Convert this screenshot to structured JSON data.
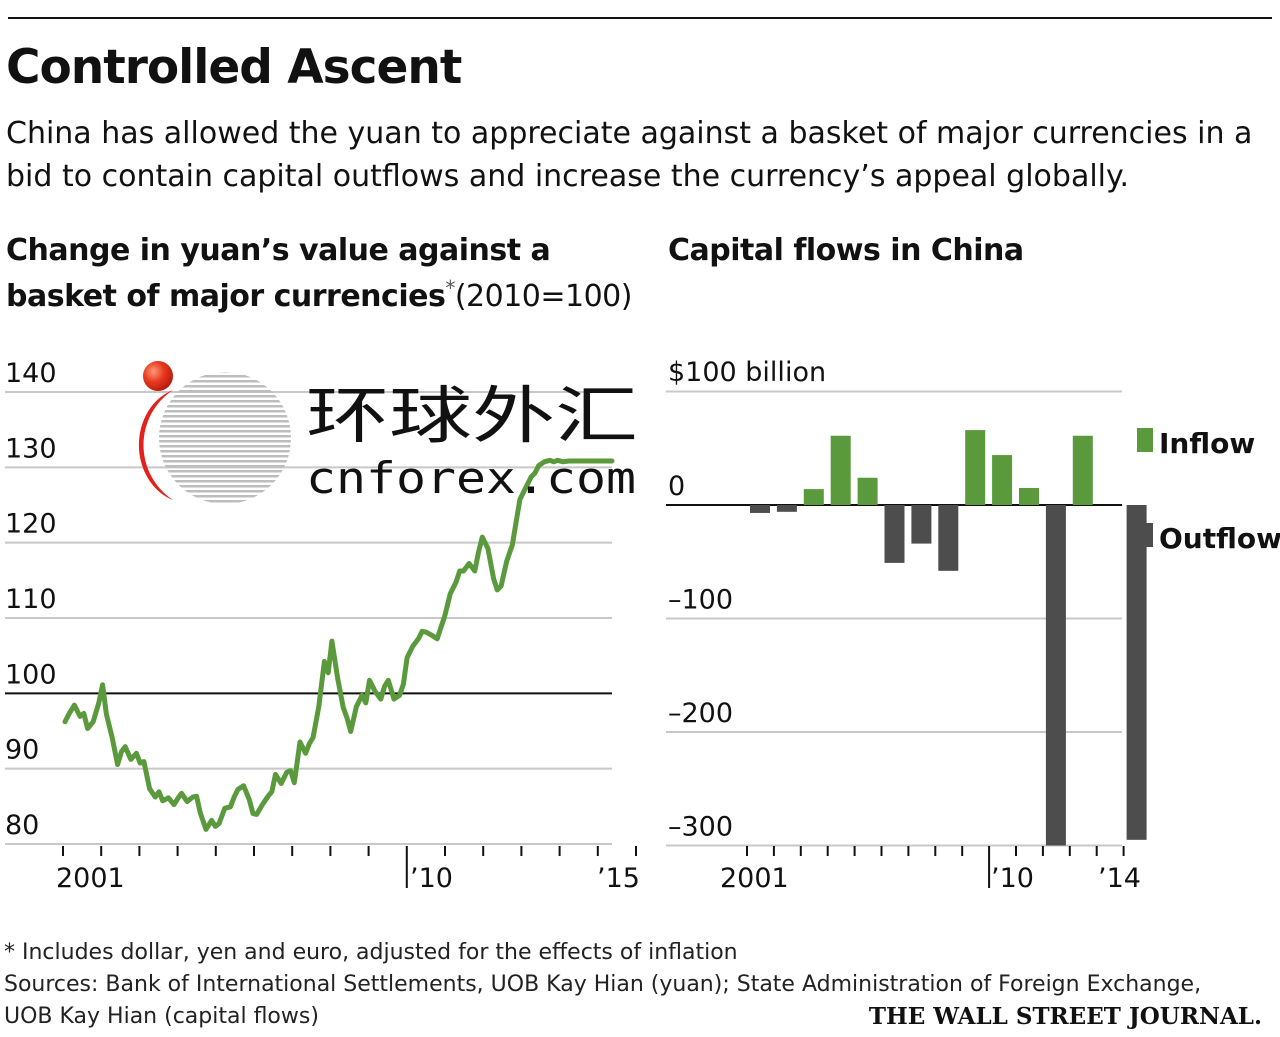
{
  "header": {
    "title": "Controlled Ascent",
    "subtitle": "China has allowed the yuan to appreciate against a basket of major currencies in a bid to contain capital outflows and increase the currency’s appeal globally."
  },
  "watermark": {
    "chinese_text": "环球外汇",
    "domain_text": "cnforex.com"
  },
  "chart_data": [
    {
      "type": "line",
      "title_main": "Change in yuan’s value against a basket of major currencies",
      "title_star": "*",
      "title_unit": "(2010=100)",
      "y_ticks": [
        "140",
        "130",
        "120",
        "110",
        "100",
        "90",
        "80"
      ],
      "x_tick_labels": [
        "2001",
        "’10",
        "’15"
      ],
      "ylim": [
        78,
        140
      ],
      "xlim": [
        2000.3,
        2015.3
      ],
      "baseline": 100,
      "line_color": "#5a9a3c",
      "series": [
        {
          "x": [
            2000.5,
            2000.6,
            2000.75,
            2000.9,
            2001.0,
            2001.1,
            2001.25,
            2001.4,
            2001.5,
            2001.6,
            2001.75,
            2001.9,
            2002.0,
            2002.1,
            2002.25,
            2002.4,
            2002.5,
            2002.6,
            2002.75,
            2002.9,
            2003.0,
            2003.1,
            2003.25,
            2003.4,
            2003.5,
            2003.6,
            2003.75,
            2003.9,
            2004.0,
            2004.1,
            2004.25,
            2004.4,
            2004.5,
            2004.6,
            2004.75,
            2004.9,
            2005.0,
            2005.1,
            2005.25,
            2005.4,
            2005.5,
            2005.6,
            2005.75,
            2005.9,
            2006.0,
            2006.1,
            2006.25,
            2006.4,
            2006.5,
            2006.6,
            2006.75,
            2006.9,
            2007.0,
            2007.1,
            2007.25,
            2007.4,
            2007.5,
            2007.6,
            2007.75,
            2007.9,
            2008.0,
            2008.1,
            2008.25,
            2008.4,
            2008.5,
            2008.6,
            2008.75,
            2008.9,
            2009.0,
            2009.1,
            2009.25,
            2009.4,
            2009.5,
            2009.6,
            2009.75,
            2009.9,
            2010.0,
            2010.1,
            2010.25,
            2010.4,
            2010.5,
            2010.6,
            2010.75,
            2010.9,
            2011.0,
            2011.1,
            2011.25,
            2011.4,
            2011.5,
            2011.6,
            2011.75,
            2011.9,
            2012.0,
            2012.1,
            2012.25,
            2012.4,
            2012.5,
            2012.6,
            2012.75,
            2012.9,
            2013.0,
            2013.1,
            2013.25,
            2013.4,
            2013.5,
            2013.6,
            2013.75,
            2013.9,
            2014.0,
            2014.1,
            2014.25,
            2014.4,
            2014.5,
            2014.6,
            2014.75,
            2014.9,
            2015.0,
            2015.05
          ],
          "y": [
            96.5,
            97.5,
            98.7,
            97.2,
            97.6,
            95.6,
            96.5,
            99.0,
            101.4,
            97.5,
            94.5,
            90.8,
            92.5,
            93.2,
            91.5,
            92.3,
            91.0,
            91.2,
            87.6,
            86.5,
            87.2,
            86.0,
            86.4,
            85.5,
            86.3,
            87.0,
            85.9,
            86.5,
            86.6,
            84.4,
            82.2,
            83.4,
            82.6,
            83.0,
            85.0,
            85.2,
            86.5,
            87.5,
            88.0,
            86.2,
            84.3,
            84.2,
            85.5,
            86.6,
            87.2,
            89.5,
            88.3,
            89.8,
            90.0,
            88.4,
            93.8,
            92.3,
            93.6,
            94.4,
            98.5,
            104.5,
            103.0,
            107.2,
            102.3,
            98.4,
            97.0,
            95.2,
            98.5,
            100.0,
            99.0,
            102.0,
            100.5,
            99.5,
            101.2,
            102.0,
            99.5,
            100.0,
            101.5,
            105.0,
            106.5,
            107.5,
            108.5,
            108.4,
            108.0,
            107.5,
            109.0,
            110.5,
            113.5,
            115.0,
            116.5,
            116.5,
            117.5,
            116.5,
            119.0,
            121.0,
            119.5,
            115.5,
            114.0,
            114.5,
            117.8,
            120.0,
            123.0,
            126.0,
            127.5,
            129.0,
            129.5,
            130.5,
            131.0,
            131.2,
            131.0,
            131.2,
            131.0,
            131.1,
            131.1,
            131.1,
            131.1,
            131.1,
            131.1,
            131.1,
            131.1,
            131.1,
            131.1,
            131.1
          ]
        }
      ]
    },
    {
      "type": "bar",
      "title": "Capital flows in China",
      "y_unit_label": "$100 billion",
      "y_ticks": [
        "0",
        "–100",
        "–200",
        "–300"
      ],
      "x_tick_labels": [
        "2001",
        "’10",
        "’14"
      ],
      "ylim": [
        -300,
        100
      ],
      "baseline": 0,
      "legend": {
        "placement": "right",
        "items": [
          {
            "label": "Inflow",
            "color": "#5a9a3c"
          },
          {
            "label": "Outflow",
            "color": "#4d4d4d"
          }
        ]
      },
      "categories": [
        "2000",
        "2001",
        "2002",
        "2003",
        "2004",
        "2005",
        "2006",
        "2007",
        "2008",
        "2009",
        "2010",
        "2011",
        "2012",
        "2013",
        "2014"
      ],
      "values": [
        -7,
        -6,
        14,
        61,
        24,
        -51,
        -34,
        -58,
        66,
        44,
        15,
        -300,
        61,
        0,
        -295
      ]
    }
  ],
  "footer": {
    "footnote": "* Includes dollar, yen and euro, adjusted for the effects of inflation",
    "sources": "Sources: Bank of International Settlements, UOB Kay Hian (yuan); State Administration of Foreign Exchange, UOB Kay Hian (capital flows)",
    "publisher": "THE WALL STREET JOURNAL."
  }
}
